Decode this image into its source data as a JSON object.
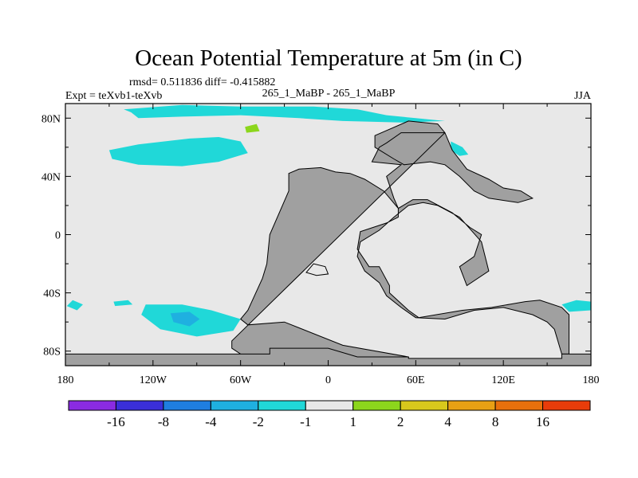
{
  "chart_data": {
    "type": "heatmap",
    "title": "Ocean Potential Temperature at 5m (in C)",
    "stats_text": "rmsd= 0.511836 diff= -0.415882",
    "left_label": "Expt = teXvb1-teXvb",
    "center_label": "265_1_MaBP - 265_1_MaBP",
    "season_label": "JJA",
    "xlim": [
      -180,
      180
    ],
    "ylim": [
      -90,
      90
    ],
    "x_ticks": [
      {
        "value": -180,
        "label": "180"
      },
      {
        "value": -120,
        "label": "120W"
      },
      {
        "value": -60,
        "label": "60W"
      },
      {
        "value": 0,
        "label": "0"
      },
      {
        "value": 60,
        "label": "60E"
      },
      {
        "value": 120,
        "label": "120E"
      },
      {
        "value": 180,
        "label": "180"
      }
    ],
    "y_ticks": [
      {
        "value": 80,
        "label": "80N"
      },
      {
        "value": 40,
        "label": "40N"
      },
      {
        "value": 0,
        "label": "0"
      },
      {
        "value": -40,
        "label": "40S"
      },
      {
        "value": -80,
        "label": "80S"
      }
    ],
    "colorbar": {
      "colors": [
        "#8a2be2",
        "#3a2fd9",
        "#1f7ee0",
        "#1fb0e0",
        "#20d8d8",
        "#e8e8e8",
        "#8cd61c",
        "#d8c81c",
        "#e8a014",
        "#e8700c",
        "#e83c0a"
      ],
      "labels": [
        "-16",
        "-8",
        "-4",
        "-2",
        "-1",
        "1",
        "2",
        "4",
        "8",
        "16"
      ]
    },
    "ocean_color": "#e8e8e8",
    "land_color": "#a0a0a0",
    "anomaly_regions": [
      {
        "level": "-1 to -2",
        "color": "#20d8d8",
        "points": [
          [
            -140,
            86
          ],
          [
            -100,
            89
          ],
          [
            -60,
            88
          ],
          [
            -10,
            88
          ],
          [
            20,
            86
          ],
          [
            40,
            82
          ],
          [
            60,
            80
          ],
          [
            80,
            78
          ],
          [
            50,
            77
          ],
          [
            10,
            78
          ],
          [
            -20,
            80
          ],
          [
            -60,
            82
          ],
          [
            -100,
            81
          ],
          [
            -130,
            80
          ],
          [
            -135,
            84
          ]
        ]
      },
      {
        "level": "-1 to -2",
        "color": "#20d8d8",
        "points": [
          [
            -150,
            58
          ],
          [
            -130,
            62
          ],
          [
            -95,
            66
          ],
          [
            -75,
            67
          ],
          [
            -60,
            64
          ],
          [
            -55,
            56
          ],
          [
            -75,
            50
          ],
          [
            -100,
            47
          ],
          [
            -130,
            48
          ],
          [
            -148,
            52
          ]
        ]
      },
      {
        "level": "-1 to -2",
        "color": "#20d8d8",
        "points": [
          [
            -175,
            -45
          ],
          [
            -168,
            -48
          ],
          [
            -172,
            -52
          ],
          [
            -179,
            -49
          ]
        ]
      },
      {
        "level": "-1 to -2",
        "color": "#20d8d8",
        "points": [
          [
            -147,
            -46
          ],
          [
            -137,
            -45
          ],
          [
            -134,
            -48
          ],
          [
            -146,
            -49
          ]
        ]
      },
      {
        "level": "-1 to -2",
        "color": "#20d8d8",
        "points": [
          [
            -125,
            -48
          ],
          [
            -100,
            -48
          ],
          [
            -80,
            -52
          ],
          [
            -60,
            -58
          ],
          [
            -65,
            -66
          ],
          [
            -90,
            -70
          ],
          [
            -115,
            -65
          ],
          [
            -128,
            -55
          ]
        ]
      },
      {
        "level": "-1 to -2",
        "color": "#20d8d8",
        "points": [
          [
            160,
            -48
          ],
          [
            170,
            -45
          ],
          [
            180,
            -46
          ],
          [
            180,
            -52
          ],
          [
            165,
            -53
          ]
        ]
      },
      {
        "level": "-1 to -2",
        "color": "#20d8d8",
        "points": [
          [
            84,
            64
          ],
          [
            92,
            60
          ],
          [
            96,
            55
          ],
          [
            90,
            54
          ],
          [
            84,
            58
          ]
        ]
      },
      {
        "level": "-2 to -4",
        "color": "#1fb0e0",
        "points": [
          [
            -108,
            -54
          ],
          [
            -95,
            -53
          ],
          [
            -88,
            -58
          ],
          [
            -95,
            -63
          ],
          [
            -106,
            -60
          ]
        ]
      },
      {
        "level": "1 to 2",
        "color": "#8cd61c",
        "points": [
          [
            -57,
            74
          ],
          [
            -49,
            76
          ],
          [
            -47,
            71
          ],
          [
            -56,
            70
          ]
        ]
      }
    ],
    "land_regions": [
      {
        "name": "main continent",
        "points": [
          [
            -66,
            -73
          ],
          [
            -66,
            -78
          ],
          [
            -60,
            -82
          ],
          [
            -30,
            -84
          ],
          [
            10,
            -86
          ],
          [
            55,
            -86
          ],
          [
            55,
            -84
          ],
          [
            10,
            -76
          ],
          [
            -20,
            -64
          ],
          [
            -30,
            -60
          ],
          [
            -55,
            -62
          ],
          [
            -60,
            -58
          ],
          [
            -55,
            -52
          ],
          [
            -45,
            -30
          ],
          [
            -42,
            -20
          ],
          [
            -40,
            0
          ],
          [
            -27,
            30
          ],
          [
            -27,
            42
          ],
          [
            -20,
            45
          ],
          [
            -5,
            46
          ],
          [
            5,
            43
          ],
          [
            15,
            42
          ],
          [
            25,
            38
          ],
          [
            38,
            30
          ],
          [
            48,
            18
          ],
          [
            48,
            12
          ],
          [
            40,
            8
          ],
          [
            22,
            2
          ],
          [
            20,
            -10
          ],
          [
            28,
            -22
          ],
          [
            35,
            -22
          ],
          [
            42,
            -35
          ],
          [
            42,
            -40
          ],
          [
            55,
            -52
          ],
          [
            62,
            -57
          ],
          [
            92,
            -52
          ],
          [
            112,
            -50
          ],
          [
            135,
            -46
          ],
          [
            145,
            -45
          ],
          [
            160,
            -50
          ],
          [
            165,
            -55
          ],
          [
            165,
            -82
          ],
          [
            160,
            -82
          ],
          [
            155,
            -65
          ],
          [
            150,
            -60
          ],
          [
            140,
            -55
          ],
          [
            120,
            -50
          ],
          [
            100,
            -52
          ],
          [
            80,
            -58
          ],
          [
            60,
            -57
          ],
          [
            50,
            -50
          ],
          [
            40,
            -42
          ],
          [
            35,
            -33
          ],
          [
            25,
            -25
          ],
          [
            20,
            -15
          ],
          [
            22,
            -5
          ],
          [
            35,
            3
          ],
          [
            45,
            12
          ],
          [
            55,
            20
          ],
          [
            65,
            22
          ],
          [
            75,
            20
          ],
          [
            90,
            12
          ],
          [
            105,
            -5
          ],
          [
            110,
            -25
          ],
          [
            95,
            -35
          ],
          [
            90,
            -22
          ],
          [
            100,
            -15
          ],
          [
            105,
            0
          ],
          [
            97,
            5
          ],
          [
            85,
            15
          ],
          [
            68,
            24
          ],
          [
            58,
            24
          ],
          [
            48,
            18
          ],
          [
            45,
            25
          ],
          [
            40,
            40
          ],
          [
            50,
            48
          ],
          [
            30,
            50
          ],
          [
            35,
            60
          ],
          [
            40,
            63
          ],
          [
            50,
            70
          ],
          [
            80,
            70
          ],
          [
            85,
            58
          ],
          [
            95,
            45
          ],
          [
            110,
            38
          ],
          [
            120,
            32
          ],
          [
            132,
            30
          ],
          [
            140,
            25
          ],
          [
            130,
            22
          ],
          [
            110,
            25
          ],
          [
            100,
            30
          ],
          [
            90,
            40
          ],
          [
            80,
            48
          ],
          [
            70,
            50
          ],
          [
            52,
            48
          ],
          [
            45,
            52
          ],
          [
            32,
            60
          ],
          [
            32,
            68
          ],
          [
            55,
            78
          ],
          [
            75,
            76
          ],
          [
            80,
            70
          ]
        ]
      },
      {
        "name": "south polar band",
        "points": [
          [
            -180,
            -82
          ],
          [
            -40,
            -82
          ],
          [
            -40,
            -78
          ],
          [
            0,
            -78
          ],
          [
            20,
            -84
          ],
          [
            55,
            -84
          ],
          [
            55,
            -85
          ],
          [
            160,
            -85
          ],
          [
            160,
            -82
          ],
          [
            180,
            -82
          ],
          [
            180,
            -90
          ],
          [
            -180,
            -90
          ]
        ]
      }
    ],
    "lake_regions": [
      {
        "name": "inland sea",
        "points": [
          [
            -10,
            -20
          ],
          [
            -2,
            -22
          ],
          [
            0,
            -27
          ],
          [
            -8,
            -28
          ],
          [
            -15,
            -26
          ]
        ]
      }
    ]
  }
}
